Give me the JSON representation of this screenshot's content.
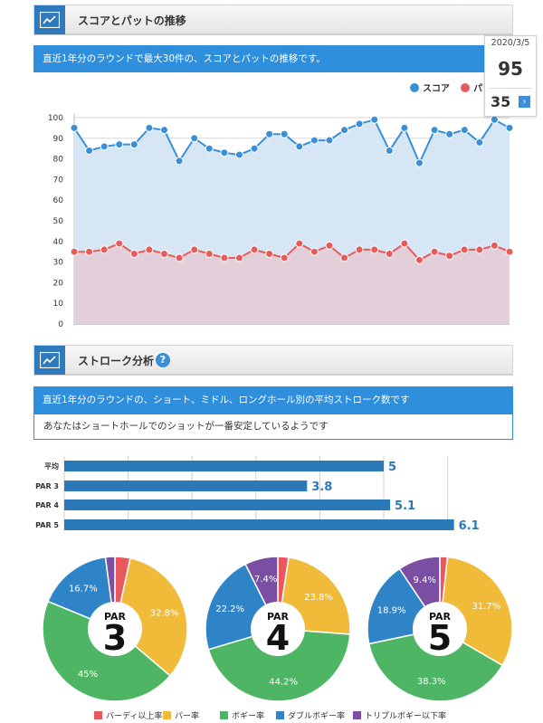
{
  "section1": {
    "title": "スコアとパットの推移",
    "banner": "直近1年分のラウンドで最大30件の、スコアとパットの推移です。"
  },
  "legend": {
    "score_label": "スコア",
    "putt_label": "パット",
    "score_color": "#3b8fd6",
    "putt_color": "#e85b5b"
  },
  "tooltip": {
    "date": "2020/3/5",
    "score": "95",
    "putts": "35",
    "next_icon": "chevron-right-icon"
  },
  "chart_data": [
    {
      "type": "area",
      "ylim": [
        0,
        100
      ],
      "yticks": [
        0,
        10,
        20,
        30,
        40,
        50,
        60,
        70,
        80,
        90,
        100
      ],
      "grid": true,
      "legend_position": "top-right",
      "series": [
        {
          "name": "スコア",
          "values": [
            95,
            84,
            86,
            87,
            87,
            95,
            94,
            79,
            90,
            85,
            83,
            82,
            85,
            92,
            92,
            86,
            89,
            89,
            94,
            97,
            99,
            84,
            95,
            78,
            94,
            92,
            94,
            88,
            99,
            95
          ]
        },
        {
          "name": "パット",
          "values": [
            35,
            35,
            36,
            39,
            34,
            36,
            34,
            32,
            36,
            34,
            32,
            32,
            36,
            34,
            32,
            39,
            35,
            38,
            32,
            36,
            36,
            34,
            39,
            31,
            35,
            33,
            36,
            36,
            38,
            35
          ]
        }
      ]
    },
    {
      "type": "bar",
      "orientation": "horizontal",
      "categories": [
        "平均",
        "PAR 3",
        "PAR 4",
        "PAR 5"
      ],
      "values": [
        5,
        3.8,
        5.1,
        6.1
      ],
      "value_labels": [
        "5",
        "3.8",
        "5.1",
        "6.1"
      ]
    },
    {
      "type": "pie",
      "center_label": "PAR",
      "center_number": "3",
      "slices": [
        {
          "name": "バーディ以上率",
          "value": 3.4
        },
        {
          "name": "パー率",
          "value": 32.8,
          "label": "32.8%"
        },
        {
          "name": "ボギー率",
          "value": 45,
          "label": "45%"
        },
        {
          "name": "ダブルボギー率",
          "value": 16.7,
          "label": "16.7%"
        },
        {
          "name": "トリプルボギー以下率",
          "value": 2.1
        }
      ]
    },
    {
      "type": "pie",
      "center_label": "PAR",
      "center_number": "4",
      "slices": [
        {
          "name": "バーディ以上率",
          "value": 2.4
        },
        {
          "name": "パー率",
          "value": 23.8,
          "label": "23.8%"
        },
        {
          "name": "ボギー率",
          "value": 44.2,
          "label": "44.2%"
        },
        {
          "name": "ダブルボギー率",
          "value": 22.2,
          "label": "22.2%"
        },
        {
          "name": "トリプルボギー以下率",
          "value": 7.4,
          "label": "7.4%"
        }
      ]
    },
    {
      "type": "pie",
      "center_label": "PAR",
      "center_number": "5",
      "slices": [
        {
          "name": "バーディ以上率",
          "value": 1.7
        },
        {
          "name": "パー率",
          "value": 31.7,
          "label": "31.7%"
        },
        {
          "name": "ボギー率",
          "value": 38.3,
          "label": "38.3%"
        },
        {
          "name": "ダブルボギー率",
          "value": 18.9,
          "label": "18.9%"
        },
        {
          "name": "トリプルボギー以下率",
          "value": 9.4,
          "label": "9.4%"
        }
      ]
    }
  ],
  "pie_legend": [
    {
      "name": "バーディ以上率",
      "color": "#e8585d"
    },
    {
      "name": "パー率",
      "color": "#f0bb38"
    },
    {
      "name": "ボギー率",
      "color": "#4db563"
    },
    {
      "name": "ダブルボギー率",
      "color": "#2f84c8"
    },
    {
      "name": "トリプルボギー以下率",
      "color": "#7a4fa3"
    }
  ],
  "section2": {
    "title": "ストローク分析",
    "help_icon": "question-icon",
    "banner": "直近1年分のラウンドの、ショート、ミドル、ロングホール別の平均ストローク数です",
    "note": "あなたはショートホールでのショットが一番安定しているようです"
  }
}
